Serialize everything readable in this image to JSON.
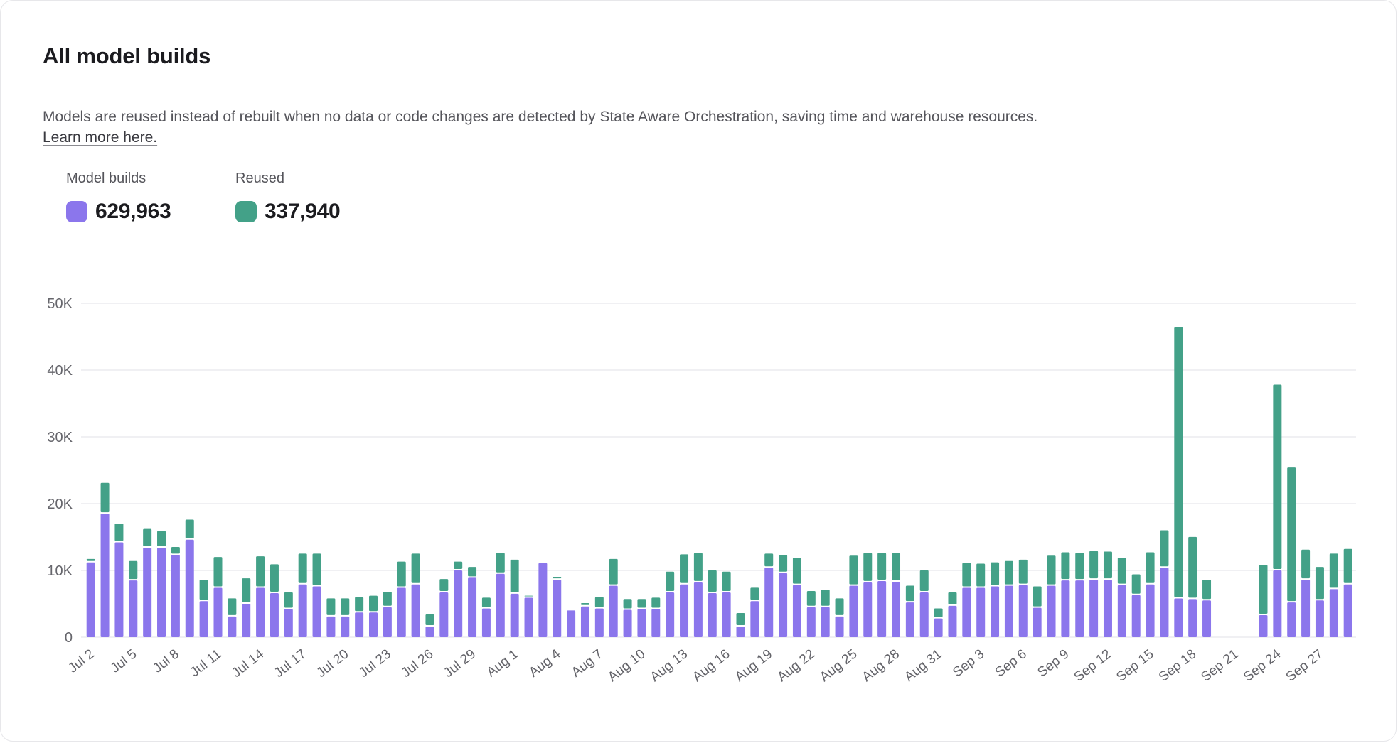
{
  "header": {
    "title": "All model builds",
    "description": "Models are reused instead of rebuilt when no data or code changes are detected by State Aware Orchestration, saving time and warehouse resources.",
    "link_text": "Learn more here."
  },
  "legend": [
    {
      "label": "Model builds",
      "value": "629,963",
      "color": "#8B76EC"
    },
    {
      "label": "Reused",
      "value": "337,940",
      "color": "#43A188"
    }
  ],
  "chart_data": {
    "type": "bar",
    "stacked": true,
    "title": "All model builds",
    "series_names": [
      "Model builds",
      "Reused"
    ],
    "colors": {
      "builds": "#8B76EC",
      "reused": "#43A188",
      "gridline": "#ececef"
    },
    "ylim": [
      0,
      50000
    ],
    "y_ticks": [
      "0",
      "10K",
      "20K",
      "30K",
      "40K",
      "50K"
    ],
    "x_label_every": 3,
    "legend_position": "top-left",
    "grid": true,
    "days": [
      {
        "date": "Jul 2",
        "builds": 11200,
        "reused": 300
      },
      {
        "date": "Jul 3",
        "builds": 18500,
        "reused": 4400
      },
      {
        "date": "Jul 4",
        "builds": 14200,
        "reused": 2600
      },
      {
        "date": "Jul 5",
        "builds": 8500,
        "reused": 2700
      },
      {
        "date": "Jul 6",
        "builds": 13400,
        "reused": 2600
      },
      {
        "date": "Jul 7",
        "builds": 13400,
        "reused": 2300
      },
      {
        "date": "Jul 8",
        "builds": 12300,
        "reused": 1000
      },
      {
        "date": "Jul 9",
        "builds": 14600,
        "reused": 2800
      },
      {
        "date": "Jul 10",
        "builds": 5400,
        "reused": 3000
      },
      {
        "date": "Jul 11",
        "builds": 7400,
        "reused": 4400
      },
      {
        "date": "Jul 12",
        "builds": 3100,
        "reused": 2500
      },
      {
        "date": "Jul 13",
        "builds": 5000,
        "reused": 3600
      },
      {
        "date": "Jul 14",
        "builds": 7400,
        "reused": 4500
      },
      {
        "date": "Jul 15",
        "builds": 6600,
        "reused": 4100
      },
      {
        "date": "Jul 16",
        "builds": 4200,
        "reused": 2300
      },
      {
        "date": "Jul 17",
        "builds": 7900,
        "reused": 4400
      },
      {
        "date": "Jul 18",
        "builds": 7600,
        "reused": 4700
      },
      {
        "date": "Jul 19",
        "builds": 3100,
        "reused": 2500
      },
      {
        "date": "Jul 20",
        "builds": 3100,
        "reused": 2500
      },
      {
        "date": "Jul 21",
        "builds": 3700,
        "reused": 2100
      },
      {
        "date": "Jul 22",
        "builds": 3700,
        "reused": 2300
      },
      {
        "date": "Jul 23",
        "builds": 4500,
        "reused": 2100
      },
      {
        "date": "Jul 24",
        "builds": 7400,
        "reused": 3700
      },
      {
        "date": "Jul 25",
        "builds": 7900,
        "reused": 4400
      },
      {
        "date": "Jul 26",
        "builds": 1600,
        "reused": 1600
      },
      {
        "date": "Jul 27",
        "builds": 6700,
        "reused": 1800
      },
      {
        "date": "Jul 28",
        "builds": 10000,
        "reused": 1100
      },
      {
        "date": "Jul 29",
        "builds": 8900,
        "reused": 1400
      },
      {
        "date": "Jul 30",
        "builds": 4300,
        "reused": 1400
      },
      {
        "date": "Jul 31",
        "builds": 9500,
        "reused": 2900
      },
      {
        "date": "Aug 1",
        "builds": 6500,
        "reused": 4900
      },
      {
        "date": "Aug 2",
        "builds": 5900,
        "reused": 100
      },
      {
        "date": "Aug 3",
        "builds": 11100,
        "reused": 0
      },
      {
        "date": "Aug 4",
        "builds": 8600,
        "reused": 200
      },
      {
        "date": "Aug 5",
        "builds": 4000,
        "reused": 0
      },
      {
        "date": "Aug 6",
        "builds": 4600,
        "reused": 300
      },
      {
        "date": "Aug 7",
        "builds": 4300,
        "reused": 1500
      },
      {
        "date": "Aug 8",
        "builds": 7700,
        "reused": 3800
      },
      {
        "date": "Aug 9",
        "builds": 4100,
        "reused": 1400
      },
      {
        "date": "Aug 10",
        "builds": 4200,
        "reused": 1300
      },
      {
        "date": "Aug 11",
        "builds": 4200,
        "reused": 1500
      },
      {
        "date": "Aug 12",
        "builds": 6700,
        "reused": 2900
      },
      {
        "date": "Aug 13",
        "builds": 7900,
        "reused": 4300
      },
      {
        "date": "Aug 14",
        "builds": 8200,
        "reused": 4200
      },
      {
        "date": "Aug 15",
        "builds": 6600,
        "reused": 3200
      },
      {
        "date": "Aug 16",
        "builds": 6700,
        "reused": 2900
      },
      {
        "date": "Aug 17",
        "builds": 1600,
        "reused": 1800
      },
      {
        "date": "Aug 18",
        "builds": 5400,
        "reused": 1800
      },
      {
        "date": "Aug 19",
        "builds": 10400,
        "reused": 1900
      },
      {
        "date": "Aug 20",
        "builds": 9600,
        "reused": 2500
      },
      {
        "date": "Aug 21",
        "builds": 7800,
        "reused": 3900
      },
      {
        "date": "Aug 22",
        "builds": 4500,
        "reused": 2200
      },
      {
        "date": "Aug 23",
        "builds": 4500,
        "reused": 2400
      },
      {
        "date": "Aug 24",
        "builds": 3100,
        "reused": 2500
      },
      {
        "date": "Aug 25",
        "builds": 7700,
        "reused": 4300
      },
      {
        "date": "Aug 26",
        "builds": 8200,
        "reused": 4200
      },
      {
        "date": "Aug 27",
        "builds": 8400,
        "reused": 4000
      },
      {
        "date": "Aug 28",
        "builds": 8300,
        "reused": 4100
      },
      {
        "date": "Aug 29",
        "builds": 5200,
        "reused": 2300
      },
      {
        "date": "Aug 30",
        "builds": 6700,
        "reused": 3100
      },
      {
        "date": "Aug 31",
        "builds": 2800,
        "reused": 1300
      },
      {
        "date": "Sep 1",
        "builds": 4700,
        "reused": 1800
      },
      {
        "date": "Sep 2",
        "builds": 7400,
        "reused": 3500
      },
      {
        "date": "Sep 3",
        "builds": 7400,
        "reused": 3400
      },
      {
        "date": "Sep 4",
        "builds": 7600,
        "reused": 3400
      },
      {
        "date": "Sep 5",
        "builds": 7700,
        "reused": 3500
      },
      {
        "date": "Sep 6",
        "builds": 7800,
        "reused": 3600
      },
      {
        "date": "Sep 7",
        "builds": 4400,
        "reused": 3000
      },
      {
        "date": "Sep 8",
        "builds": 7700,
        "reused": 4300
      },
      {
        "date": "Sep 9",
        "builds": 8500,
        "reused": 4000
      },
      {
        "date": "Sep 10",
        "builds": 8500,
        "reused": 3900
      },
      {
        "date": "Sep 11",
        "builds": 8600,
        "reused": 4100
      },
      {
        "date": "Sep 12",
        "builds": 8600,
        "reused": 4000
      },
      {
        "date": "Sep 13",
        "builds": 7800,
        "reused": 3900
      },
      {
        "date": "Sep 14",
        "builds": 6300,
        "reused": 2900
      },
      {
        "date": "Sep 15",
        "builds": 7900,
        "reused": 4600
      },
      {
        "date": "Sep 16",
        "builds": 10400,
        "reused": 5400
      },
      {
        "date": "Sep 17",
        "builds": 5800,
        "reused": 40400
      },
      {
        "date": "Sep 18",
        "builds": 5700,
        "reused": 9100
      },
      {
        "date": "Sep 19",
        "builds": 5500,
        "reused": 2900
      },
      {
        "date": "Sep 20",
        "builds": null,
        "reused": null
      },
      {
        "date": "Sep 21",
        "builds": null,
        "reused": null
      },
      {
        "date": "Sep 22",
        "builds": null,
        "reused": null
      },
      {
        "date": "Sep 23",
        "builds": 3300,
        "reused": 7300
      },
      {
        "date": "Sep 24",
        "builds": 10000,
        "reused": 27600
      },
      {
        "date": "Sep 25",
        "builds": 5200,
        "reused": 20000
      },
      {
        "date": "Sep 26",
        "builds": 8600,
        "reused": 4300
      },
      {
        "date": "Sep 27",
        "builds": 5500,
        "reused": 4800
      },
      {
        "date": "Sep 28",
        "builds": 7200,
        "reused": 5100
      },
      {
        "date": "Sep 29",
        "builds": 7900,
        "reused": 5100
      }
    ]
  }
}
